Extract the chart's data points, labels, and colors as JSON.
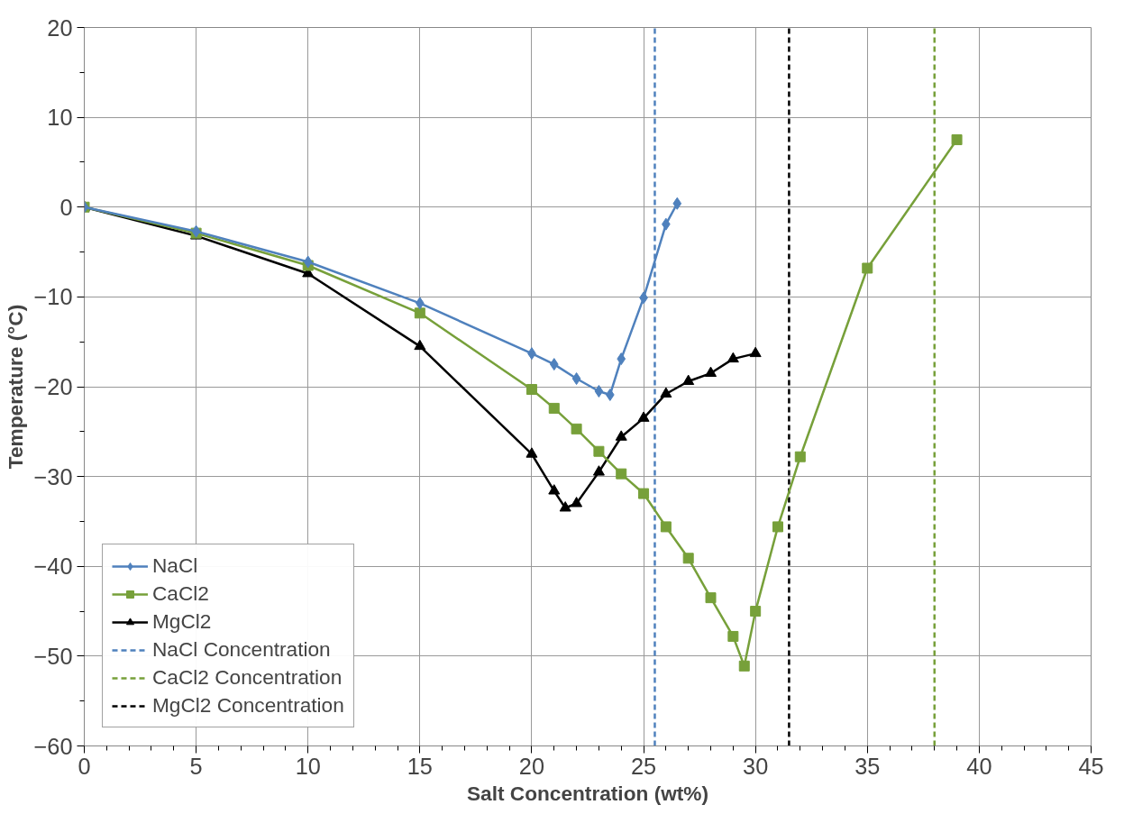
{
  "chart_data": {
    "type": "line",
    "xlabel": "Salt Concentration (wt%)",
    "ylabel": "Temperature (°C)",
    "xlim": [
      0,
      45
    ],
    "xticks": [
      0,
      5,
      10,
      15,
      20,
      25,
      30,
      35,
      40,
      45
    ],
    "ylim": [
      -60,
      20
    ],
    "yticks": [
      -60,
      -50,
      -40,
      -30,
      -20,
      -10,
      0,
      10,
      20
    ],
    "grid": true,
    "legend": "bottom left",
    "line_style": "solid",
    "series": [
      {
        "name": "NaCl",
        "color": "#4f81bd",
        "marker": "diamond",
        "x": [
          0,
          5,
          10,
          15,
          20,
          21,
          22,
          23,
          23.5,
          24,
          25,
          26,
          26.5
        ],
        "values": [
          0,
          -2.7,
          -6.1,
          -10.7,
          -16.3,
          -17.5,
          -19.1,
          -20.5,
          -20.9,
          -16.9,
          -10.1,
          -1.9,
          0.4
        ]
      },
      {
        "name": "CaCl2",
        "color": "#77a03a",
        "marker": "square",
        "x": [
          0,
          5,
          10,
          15,
          20,
          21,
          22,
          23,
          24,
          25,
          26,
          27,
          28,
          29,
          29.5,
          30,
          31,
          32,
          35,
          39
        ],
        "values": [
          0,
          -2.9,
          -6.5,
          -11.8,
          -20.3,
          -22.4,
          -24.7,
          -27.2,
          -29.7,
          -31.9,
          -35.6,
          -39.1,
          -43.5,
          -47.8,
          -51.1,
          -45.0,
          -35.6,
          -27.8,
          -6.8,
          7.5
        ]
      },
      {
        "name": "MgCl2",
        "color": "#000000",
        "marker": "triangle",
        "x": [
          0,
          5,
          10,
          15,
          20,
          21,
          21.5,
          22,
          23,
          24,
          25,
          26,
          27,
          28,
          29,
          30
        ],
        "values": [
          0,
          -3.2,
          -7.4,
          -15.5,
          -27.5,
          -31.6,
          -33.5,
          -33.0,
          -29.5,
          -25.6,
          -23.5,
          -20.8,
          -19.4,
          -18.5,
          -16.9,
          -16.3
        ]
      },
      {
        "name": "NaCl Concentration",
        "color": "#4f81bd",
        "marker": "none",
        "line_style": "dashed",
        "x": [
          25.5,
          25.5
        ],
        "values": [
          -60,
          20
        ]
      },
      {
        "name": "CaCl2 Concentration",
        "color": "#77a03a",
        "marker": "none",
        "line_style": "dashed",
        "x": [
          38,
          38
        ],
        "values": [
          -60,
          20
        ]
      },
      {
        "name": "MgCl2 Concentration",
        "color": "#000000",
        "marker": "none",
        "line_style": "dashed",
        "x": [
          31.5,
          31.5
        ],
        "values": [
          -60,
          20
        ]
      }
    ]
  }
}
